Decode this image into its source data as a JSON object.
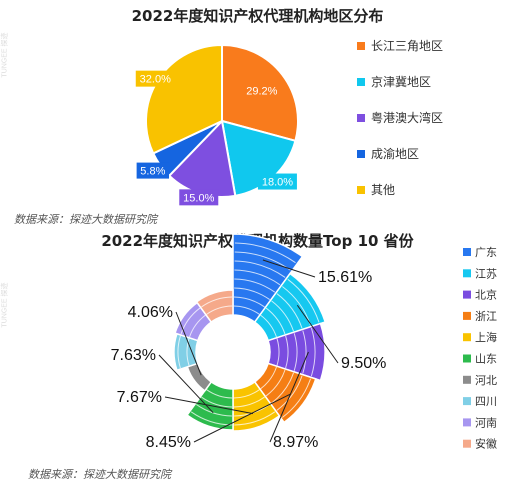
{
  "titles": {
    "chart1": "2022年度知识产权代理机构地区分布",
    "chart2": "2022年度知识产权代理机构数量Top 10 省份"
  },
  "sources": {
    "chart1": "数据来源：探迹大数据研究院",
    "chart2": "数据来源：探迹大数据研究院"
  },
  "watermark": "TUNGEE 探迹",
  "chart_data": [
    {
      "type": "pie",
      "title": "2022年度知识产权代理机构地区分布",
      "legend_position": "right",
      "slices": [
        {
          "name": "长江三角地区",
          "value": 29.2,
          "label": "29.2%",
          "color": "#F97B1C"
        },
        {
          "name": "京津冀地区",
          "value": 18.0,
          "label": "18.0%",
          "color": "#10C8EE"
        },
        {
          "name": "粤港澳大湾区",
          "value": 15.0,
          "label": "15.0%",
          "color": "#7E4FE0"
        },
        {
          "name": "成渝地区",
          "value": 5.8,
          "label": "5.8%",
          "color": "#1565E0"
        },
        {
          "name": "其他",
          "value": 32.0,
          "label": "32.0%",
          "color": "#F9C200"
        }
      ]
    },
    {
      "type": "pie",
      "subtype": "rose-donut",
      "title": "2022年度知识产权代理机构数量Top 10 省份",
      "legend_position": "right",
      "slices": [
        {
          "name": "广东",
          "value": 15.61,
          "label": "15.61%",
          "color": "#2878F0"
        },
        {
          "name": "江苏",
          "value": 9.5,
          "label": "9.50%",
          "color": "#16C8F0"
        },
        {
          "name": "北京",
          "value": 8.97,
          "label": "8.97%",
          "color": "#7A4CE0"
        },
        {
          "name": "浙江",
          "value": 8.45,
          "label": "8.45%",
          "color": "#F57E14"
        },
        {
          "name": "上海",
          "value": 7.67,
          "label": "7.67%",
          "color": "#F9C300"
        },
        {
          "name": "山东",
          "value": 7.63,
          "label": "7.63%",
          "color": "#2DBB4D"
        },
        {
          "name": "河北",
          "value": 4.06,
          "label": "4.06%",
          "color": "#8C8C8C"
        },
        {
          "name": "四川",
          "value": null,
          "label": "",
          "color": "#80CFE6"
        },
        {
          "name": "河南",
          "value": null,
          "label": "",
          "color": "#A796F0"
        },
        {
          "name": "安徽",
          "value": null,
          "label": "",
          "color": "#F5A98A"
        }
      ]
    }
  ]
}
